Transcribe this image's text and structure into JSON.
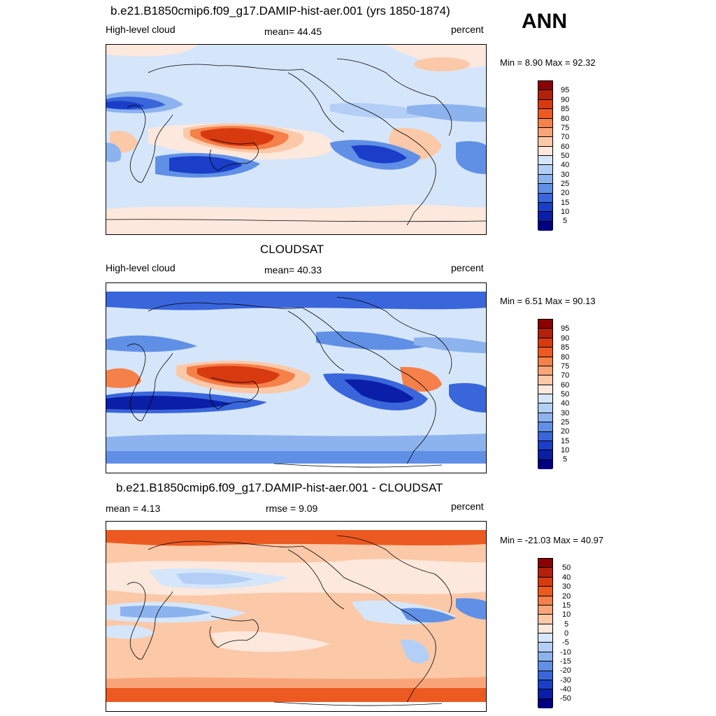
{
  "season": "ANN",
  "panels": [
    {
      "title": "b.e21.B1850cmip6.f09_g17.DAMIP-hist-aer.001 (yrs 1850-1874)",
      "left_label": "High-level cloud",
      "center_label": "mean=  44.45",
      "right_label": "percent",
      "minmax": "Min =   8.90 Max =  92.32",
      "levels": [
        "95",
        "90",
        "85",
        "80",
        "75",
        "70",
        "60",
        "50",
        "40",
        "30",
        "25",
        "20",
        "15",
        "10",
        "5"
      ]
    },
    {
      "title": "CLOUDSAT",
      "left_label": "High-level cloud",
      "center_label": "mean=  40.33",
      "right_label": "percent",
      "minmax": "Min =   6.51 Max =  90.13",
      "levels": [
        "95",
        "90",
        "85",
        "80",
        "75",
        "70",
        "60",
        "50",
        "40",
        "30",
        "25",
        "20",
        "15",
        "10",
        "5"
      ]
    },
    {
      "title": "b.e21.B1850cmip6.f09_g17.DAMIP-hist-aer.001 - CLOUDSAT",
      "left_label": "mean =   4.13",
      "center_label": "rmse =   9.09",
      "right_label": "percent",
      "minmax": "Min = -21.03 Max =  40.97",
      "levels": [
        "50",
        "40",
        "30",
        "20",
        "15",
        "10",
        "5",
        "0",
        "-5",
        "-10",
        "-15",
        "-20",
        "-30",
        "-40",
        "-50"
      ]
    }
  ],
  "colors": {
    "scale": [
      "#8b0000",
      "#b3200c",
      "#d83a10",
      "#ec5a22",
      "#f5804a",
      "#faa579",
      "#fbc9a8",
      "#fce8dc",
      "#d6e6fa",
      "#b3cff5",
      "#8db3ee",
      "#6090e6",
      "#3a66dc",
      "#1a3ec8",
      "#0a1ea8",
      "#000080"
    ]
  },
  "chart_data": [
    {
      "type": "heatmap",
      "title": "b.e21.B1850cmip6.f09_g17.DAMIP-hist-aer.001 (yrs 1850-1874)",
      "variable": "High-level cloud",
      "units": "percent",
      "mean": 44.45,
      "min": 8.9,
      "max": 92.32,
      "contour_levels": [
        5,
        10,
        15,
        20,
        25,
        30,
        40,
        50,
        60,
        70,
        75,
        80,
        85,
        90,
        95
      ]
    },
    {
      "type": "heatmap",
      "title": "CLOUDSAT",
      "variable": "High-level cloud",
      "units": "percent",
      "mean": 40.33,
      "min": 6.51,
      "max": 90.13,
      "contour_levels": [
        5,
        10,
        15,
        20,
        25,
        30,
        40,
        50,
        60,
        70,
        75,
        80,
        85,
        90,
        95
      ]
    },
    {
      "type": "heatmap",
      "title": "b.e21.B1850cmip6.f09_g17.DAMIP-hist-aer.001 - CLOUDSAT",
      "units": "percent",
      "mean": 4.13,
      "rmse": 9.09,
      "min": -21.03,
      "max": 40.97,
      "contour_levels": [
        -50,
        -40,
        -30,
        -20,
        -15,
        -10,
        -5,
        0,
        5,
        10,
        15,
        20,
        30,
        40,
        50
      ]
    }
  ]
}
